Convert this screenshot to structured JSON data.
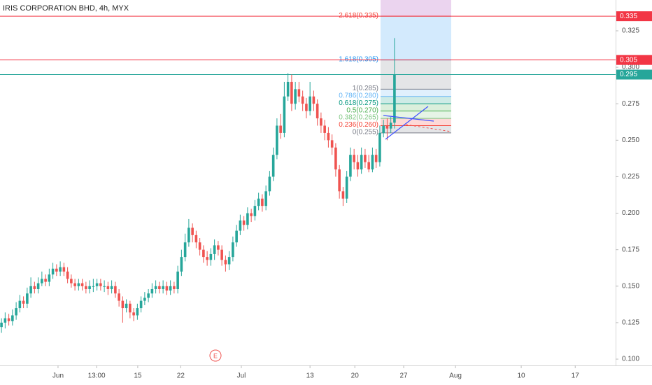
{
  "chart_data": {
    "type": "candlestick",
    "title": "IRIS CORPORATION BHD, 4h, MYX",
    "up_color": "#26a69a",
    "down_color": "#ef5350",
    "ylim": [
      0.0957,
      0.3461
    ],
    "yticks": [
      0.325,
      {
        "value": 0.3,
        "label": "0.300"
      },
      0.275,
      {
        "value": 0.25,
        "label": "0.250"
      },
      0.225,
      {
        "value": 0.2,
        "label": "0.200"
      },
      0.175,
      {
        "value": 0.15,
        "label": "0.150"
      },
      0.125,
      {
        "value": 0.1,
        "label": "0.100"
      }
    ],
    "xlim": [
      -0.4,
      167.2
    ],
    "xticks": [
      {
        "value": 15.4,
        "label": "Jun"
      },
      {
        "value": 25.9,
        "label": "13:00"
      },
      {
        "value": 37.1,
        "label": "15"
      },
      {
        "value": 48.8,
        "label": "22"
      },
      {
        "value": 65.3,
        "label": "Jul"
      },
      {
        "value": 84,
        "label": "13"
      },
      {
        "value": 96.2,
        "label": "20"
      },
      {
        "value": 109.5,
        "label": "27"
      },
      {
        "value": 123.6,
        "label": "Aug"
      },
      {
        "value": 141.5,
        "label": "10"
      },
      {
        "value": 156.2,
        "label": "17"
      }
    ],
    "open": [
      0.122,
      0.125,
      0.128,
      0.126,
      0.13,
      0.135,
      0.14,
      0.138,
      0.145,
      0.15,
      0.148,
      0.152,
      0.155,
      0.153,
      0.158,
      0.162,
      0.16,
      0.163,
      0.16,
      0.155,
      0.152,
      0.15,
      0.152,
      0.15,
      0.148,
      0.15,
      0.15,
      0.152,
      0.15,
      0.15,
      0.148,
      0.15,
      0.145,
      0.14,
      0.135,
      0.138,
      0.132,
      0.13,
      0.135,
      0.14,
      0.142,
      0.145,
      0.148,
      0.15,
      0.148,
      0.15,
      0.147,
      0.15,
      0.148,
      0.16,
      0.17,
      0.18,
      0.19,
      0.185,
      0.18,
      0.175,
      0.17,
      0.168,
      0.172,
      0.178,
      0.175,
      0.168,
      0.165,
      0.17,
      0.18,
      0.188,
      0.195,
      0.192,
      0.2,
      0.198,
      0.205,
      0.21,
      0.205,
      0.215,
      0.225,
      0.24,
      0.26,
      0.255,
      0.28,
      0.29,
      0.275,
      0.285,
      0.28,
      0.275,
      0.27,
      0.28,
      0.275,
      0.265,
      0.26,
      0.255,
      0.25,
      0.245,
      0.23,
      0.215,
      0.21,
      0.225,
      0.24,
      0.235,
      0.23,
      0.24,
      0.235,
      0.23,
      0.24,
      0.235,
      0.255,
      0.26,
      0.258,
      0.262
    ],
    "high": [
      0.128,
      0.132,
      0.131,
      0.134,
      0.139,
      0.144,
      0.143,
      0.149,
      0.156,
      0.153,
      0.156,
      0.16,
      0.158,
      0.162,
      0.166,
      0.165,
      0.167,
      0.166,
      0.163,
      0.158,
      0.155,
      0.155,
      0.155,
      0.153,
      0.154,
      0.155,
      0.155,
      0.155,
      0.154,
      0.153,
      0.154,
      0.153,
      0.148,
      0.143,
      0.141,
      0.14,
      0.135,
      0.138,
      0.143,
      0.146,
      0.148,
      0.152,
      0.154,
      0.153,
      0.154,
      0.153,
      0.154,
      0.153,
      0.164,
      0.175,
      0.186,
      0.196,
      0.193,
      0.188,
      0.183,
      0.178,
      0.174,
      0.176,
      0.182,
      0.181,
      0.178,
      0.171,
      0.174,
      0.184,
      0.192,
      0.199,
      0.198,
      0.204,
      0.203,
      0.209,
      0.214,
      0.213,
      0.219,
      0.229,
      0.245,
      0.265,
      0.268,
      0.29,
      0.296,
      0.295,
      0.29,
      0.29,
      0.284,
      0.279,
      0.29,
      0.284,
      0.278,
      0.269,
      0.264,
      0.259,
      0.254,
      0.248,
      0.233,
      0.218,
      0.229,
      0.245,
      0.244,
      0.24,
      0.245,
      0.244,
      0.24,
      0.245,
      0.244,
      0.26,
      0.264,
      0.265,
      0.266,
      0.32
    ],
    "low": [
      0.118,
      0.121,
      0.123,
      0.123,
      0.127,
      0.132,
      0.135,
      0.135,
      0.142,
      0.145,
      0.145,
      0.15,
      0.15,
      0.15,
      0.155,
      0.157,
      0.157,
      0.157,
      0.152,
      0.149,
      0.147,
      0.147,
      0.147,
      0.145,
      0.145,
      0.146,
      0.147,
      0.147,
      0.146,
      0.144,
      0.145,
      0.142,
      0.136,
      0.125,
      0.132,
      0.128,
      0.126,
      0.127,
      0.132,
      0.137,
      0.139,
      0.142,
      0.145,
      0.145,
      0.145,
      0.144,
      0.144,
      0.145,
      0.145,
      0.157,
      0.167,
      0.177,
      0.18,
      0.176,
      0.171,
      0.166,
      0.164,
      0.164,
      0.168,
      0.171,
      0.164,
      0.16,
      0.161,
      0.167,
      0.177,
      0.185,
      0.188,
      0.189,
      0.194,
      0.195,
      0.202,
      0.201,
      0.202,
      0.212,
      0.222,
      0.237,
      0.251,
      0.252,
      0.277,
      0.27,
      0.271,
      0.276,
      0.27,
      0.265,
      0.267,
      0.27,
      0.26,
      0.255,
      0.25,
      0.245,
      0.24,
      0.225,
      0.21,
      0.205,
      0.207,
      0.222,
      0.23,
      0.225,
      0.227,
      0.231,
      0.228,
      0.228,
      0.231,
      0.232,
      0.252,
      0.25,
      0.255,
      0.258
    ],
    "close": [
      0.125,
      0.128,
      0.126,
      0.13,
      0.135,
      0.14,
      0.138,
      0.145,
      0.15,
      0.148,
      0.152,
      0.155,
      0.153,
      0.158,
      0.162,
      0.16,
      0.163,
      0.16,
      0.155,
      0.152,
      0.15,
      0.152,
      0.15,
      0.148,
      0.15,
      0.15,
      0.152,
      0.15,
      0.15,
      0.148,
      0.15,
      0.145,
      0.14,
      0.135,
      0.138,
      0.132,
      0.13,
      0.135,
      0.14,
      0.142,
      0.145,
      0.148,
      0.15,
      0.148,
      0.15,
      0.147,
      0.15,
      0.148,
      0.16,
      0.17,
      0.18,
      0.19,
      0.185,
      0.18,
      0.175,
      0.17,
      0.168,
      0.172,
      0.178,
      0.175,
      0.168,
      0.165,
      0.17,
      0.18,
      0.188,
      0.195,
      0.192,
      0.2,
      0.198,
      0.205,
      0.21,
      0.205,
      0.215,
      0.225,
      0.24,
      0.26,
      0.255,
      0.28,
      0.29,
      0.275,
      0.285,
      0.28,
      0.275,
      0.27,
      0.28,
      0.275,
      0.265,
      0.26,
      0.255,
      0.25,
      0.245,
      0.23,
      0.215,
      0.21,
      0.225,
      0.24,
      0.235,
      0.23,
      0.24,
      0.235,
      0.23,
      0.24,
      0.235,
      0.255,
      0.26,
      0.258,
      0.262,
      0.295
    ],
    "fib_levels": [
      {
        "label": "2.618(0.335)",
        "value": 0.335,
        "color": "#f44336"
      },
      {
        "label": "1.618(0.305)",
        "value": 0.305,
        "color": "#2196f3"
      },
      {
        "label": "1(0.285)",
        "value": 0.285,
        "color": "#787b86"
      },
      {
        "label": "0.786(0.280)",
        "value": 0.28,
        "color": "#64b5f6"
      },
      {
        "label": "0.618(0.275)",
        "value": 0.275,
        "color": "#089981"
      },
      {
        "label": "0.5(0.270)",
        "value": 0.27,
        "color": "#4caf50"
      },
      {
        "label": "0.382(0.265)",
        "value": 0.265,
        "color": "#81c784"
      },
      {
        "label": "0.236(0.260)",
        "value": 0.26,
        "color": "#f44336"
      },
      {
        "label": "0(0.255)",
        "value": 0.255,
        "color": "#787b86"
      }
    ],
    "price_lines": [
      {
        "value": 0.335,
        "color": "#f23645"
      },
      {
        "value": 0.305,
        "color": "#f23645"
      },
      {
        "value": 0.295,
        "color": "#26a69a"
      }
    ],
    "event_marker": "E"
  }
}
